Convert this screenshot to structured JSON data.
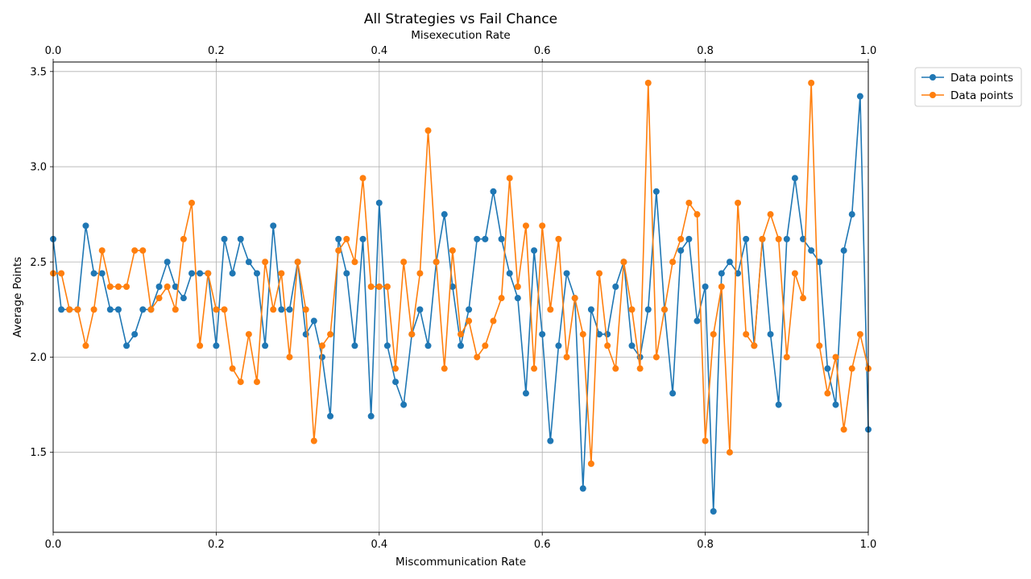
{
  "chart_data": {
    "type": "line",
    "title": "All Strategies vs Fail Chance",
    "xlabel": "Miscommunication Rate",
    "x2label": "Misexecution Rate",
    "ylabel": "Average Points",
    "xlim": [
      0.0,
      1.0
    ],
    "ylim": [
      1.08,
      3.55
    ],
    "x_ticks": [
      "0.0",
      "0.2",
      "0.4",
      "0.6",
      "0.8",
      "1.0"
    ],
    "x_tick_values": [
      0.0,
      0.2,
      0.4,
      0.6,
      0.8,
      1.0
    ],
    "x2_ticks": [
      "0.0",
      "0.2",
      "0.4",
      "0.6",
      "0.8",
      "1.0"
    ],
    "x2_tick_values": [
      0.0,
      0.2,
      0.4,
      0.6,
      0.8,
      1.0
    ],
    "y_ticks": [
      "1.5",
      "2.0",
      "2.5",
      "3.0",
      "3.5"
    ],
    "y_tick_values": [
      1.5,
      2.0,
      2.5,
      3.0,
      3.5
    ],
    "grid": true,
    "legend_position": "outside-top-right",
    "colors": [
      "#1f77b4",
      "#ff7f0e"
    ],
    "series": [
      {
        "name": "Data points",
        "axis": "bottom",
        "x": [
          0.0,
          0.01,
          0.02,
          0.03,
          0.04,
          0.05,
          0.06,
          0.07,
          0.08,
          0.09,
          0.1,
          0.11,
          0.12,
          0.13,
          0.14,
          0.15,
          0.16,
          0.17,
          0.18,
          0.19,
          0.2,
          0.21,
          0.22,
          0.23,
          0.24,
          0.25,
          0.26,
          0.27,
          0.28,
          0.29,
          0.3,
          0.31,
          0.32,
          0.33,
          0.34,
          0.35,
          0.36,
          0.37,
          0.38,
          0.39,
          0.4,
          0.41,
          0.42,
          0.43,
          0.44,
          0.45,
          0.46,
          0.47,
          0.48,
          0.49,
          0.5,
          0.51,
          0.52,
          0.53,
          0.54,
          0.55,
          0.56,
          0.57,
          0.58,
          0.59,
          0.6,
          0.61,
          0.62,
          0.63,
          0.64,
          0.65,
          0.66,
          0.67,
          0.68,
          0.69,
          0.7,
          0.71,
          0.72,
          0.73,
          0.74,
          0.75,
          0.76,
          0.77,
          0.78,
          0.79,
          0.8,
          0.81,
          0.82,
          0.83,
          0.84,
          0.85,
          0.86,
          0.87,
          0.88,
          0.89,
          0.9,
          0.91,
          0.92,
          0.93,
          0.94,
          0.95,
          0.96,
          0.97,
          0.98,
          0.99,
          1.0
        ],
        "values": [
          2.62,
          2.25,
          2.25,
          2.25,
          2.69,
          2.44,
          2.44,
          2.25,
          2.25,
          2.06,
          2.12,
          2.25,
          2.25,
          2.37,
          2.5,
          2.37,
          2.31,
          2.44,
          2.44,
          2.44,
          2.06,
          2.62,
          2.44,
          2.62,
          2.5,
          2.44,
          2.06,
          2.69,
          2.25,
          2.25,
          2.5,
          2.12,
          2.19,
          2.0,
          1.69,
          2.62,
          2.44,
          2.06,
          2.62,
          1.69,
          2.81,
          2.06,
          1.87,
          1.75,
          2.12,
          2.25,
          2.06,
          2.5,
          2.75,
          2.37,
          2.06,
          2.25,
          2.62,
          2.62,
          2.87,
          2.62,
          2.44,
          2.31,
          1.81,
          2.56,
          2.12,
          1.56,
          2.06,
          2.44,
          2.31,
          1.31,
          2.25,
          2.12,
          2.12,
          2.37,
          2.5,
          2.06,
          2.0,
          2.25,
          2.87,
          2.25,
          1.81,
          2.56,
          2.62,
          2.19,
          2.37,
          1.19,
          2.44,
          2.5,
          2.44,
          2.62,
          2.06,
          2.62,
          2.12,
          1.75,
          2.62,
          2.94,
          2.62,
          2.56,
          2.5,
          1.94,
          1.75,
          2.56,
          2.75,
          3.37,
          1.62
        ]
      },
      {
        "name": "Data points",
        "axis": "top",
        "x": [
          0.0,
          0.01,
          0.02,
          0.03,
          0.04,
          0.05,
          0.06,
          0.07,
          0.08,
          0.09,
          0.1,
          0.11,
          0.12,
          0.13,
          0.14,
          0.15,
          0.16,
          0.17,
          0.18,
          0.19,
          0.2,
          0.21,
          0.22,
          0.23,
          0.24,
          0.25,
          0.26,
          0.27,
          0.28,
          0.29,
          0.3,
          0.31,
          0.32,
          0.33,
          0.34,
          0.35,
          0.36,
          0.37,
          0.38,
          0.39,
          0.4,
          0.41,
          0.42,
          0.43,
          0.44,
          0.45,
          0.46,
          0.47,
          0.48,
          0.49,
          0.5,
          0.51,
          0.52,
          0.53,
          0.54,
          0.55,
          0.56,
          0.57,
          0.58,
          0.59,
          0.6,
          0.61,
          0.62,
          0.63,
          0.64,
          0.65,
          0.66,
          0.67,
          0.68,
          0.69,
          0.7,
          0.71,
          0.72,
          0.73,
          0.74,
          0.75,
          0.76,
          0.77,
          0.78,
          0.79,
          0.8,
          0.81,
          0.82,
          0.83,
          0.84,
          0.85,
          0.86,
          0.87,
          0.88,
          0.89,
          0.9,
          0.91,
          0.92,
          0.93,
          0.94,
          0.95,
          0.96,
          0.97,
          0.98,
          0.99,
          1.0
        ],
        "values": [
          2.44,
          2.44,
          2.25,
          2.25,
          2.06,
          2.25,
          2.56,
          2.37,
          2.37,
          2.37,
          2.56,
          2.56,
          2.25,
          2.31,
          2.37,
          2.25,
          2.62,
          2.81,
          2.06,
          2.44,
          2.25,
          2.25,
          1.94,
          1.87,
          2.12,
          1.87,
          2.5,
          2.25,
          2.44,
          2.0,
          2.5,
          2.25,
          1.56,
          2.06,
          2.12,
          2.56,
          2.62,
          2.5,
          2.94,
          2.37,
          2.37,
          2.37,
          1.94,
          2.5,
          2.12,
          2.44,
          3.19,
          2.5,
          1.94,
          2.56,
          2.12,
          2.19,
          2.0,
          2.06,
          2.19,
          2.31,
          2.94,
          2.37,
          2.69,
          1.94,
          2.69,
          2.25,
          2.62,
          2.0,
          2.31,
          2.12,
          1.44,
          2.44,
          2.06,
          1.94,
          2.5,
          2.25,
          1.94,
          3.44,
          2.0,
          2.25,
          2.5,
          2.62,
          2.81,
          2.75,
          1.56,
          2.12,
          2.37,
          1.5,
          2.81,
          2.12,
          2.06,
          2.62,
          2.75,
          2.62,
          2.0,
          2.44,
          2.31,
          3.44,
          2.06,
          1.81,
          2.0,
          1.62,
          1.94,
          2.12,
          1.94
        ]
      }
    ]
  }
}
